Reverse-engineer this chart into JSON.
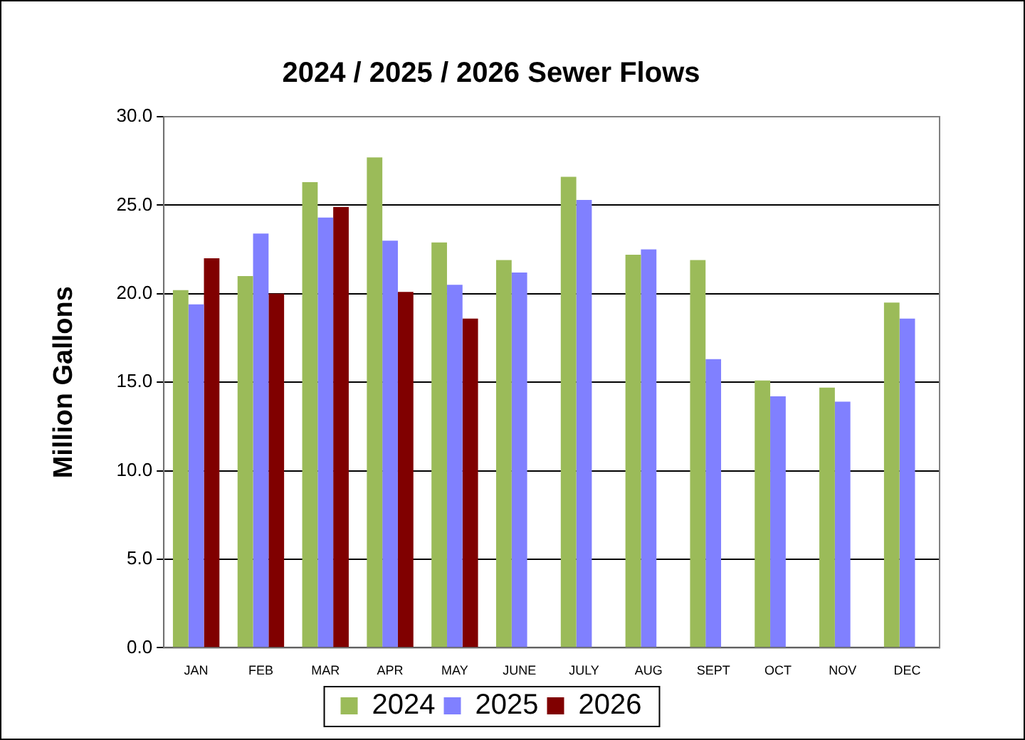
{
  "chart_data": {
    "type": "bar",
    "title": "2024 / 2025 / 2026 Sewer Flows",
    "ylabel": "Million Gallons",
    "categories": [
      "JAN",
      "FEB",
      "MAR",
      "APR",
      "MAY",
      "JUNE",
      "JULY",
      "AUG",
      "SEPT",
      "OCT",
      "NOV",
      "DEC"
    ],
    "series": [
      {
        "name": "2024",
        "color": "#9bbb59",
        "values": [
          20.2,
          21.0,
          26.3,
          27.7,
          22.9,
          21.9,
          26.6,
          22.2,
          21.9,
          15.1,
          14.7,
          19.5
        ]
      },
      {
        "name": "2025",
        "color": "#8080ff",
        "values": [
          19.4,
          23.4,
          24.3,
          23.0,
          20.5,
          21.2,
          25.3,
          22.5,
          16.3,
          14.2,
          13.9,
          18.6
        ]
      },
      {
        "name": "2026",
        "color": "#800000",
        "values": [
          22.0,
          20.0,
          24.9,
          20.1,
          18.6,
          null,
          null,
          null,
          null,
          null,
          null,
          null
        ]
      }
    ],
    "ylim": [
      0,
      30
    ],
    "yticks": [
      {
        "value": 0,
        "label": "0.0"
      },
      {
        "value": 5,
        "label": "5.0"
      },
      {
        "value": 10,
        "label": "10.0"
      },
      {
        "value": 15,
        "label": "15.0"
      },
      {
        "value": 20,
        "label": "20.0"
      },
      {
        "value": 25,
        "label": "25.0"
      },
      {
        "value": 30,
        "label": "30.0"
      }
    ],
    "grid": "y",
    "legend": "bottom"
  }
}
